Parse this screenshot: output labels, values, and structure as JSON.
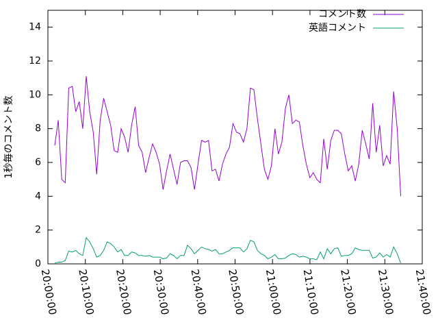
{
  "chart_data": {
    "type": "line",
    "y_label": "1秒毎のコメント数",
    "x": [
      "20:01:50",
      "20:02:46",
      "20:03:42",
      "20:04:38",
      "20:05:34",
      "20:06:30",
      "20:07:26",
      "20:08:22",
      "20:09:18",
      "20:10:14",
      "20:11:10",
      "20:12:06",
      "20:13:02",
      "20:13:58",
      "20:14:54",
      "20:15:50",
      "20:16:46",
      "20:17:42",
      "20:18:38",
      "20:19:34",
      "20:20:30",
      "20:21:26",
      "20:22:22",
      "20:23:18",
      "20:24:14",
      "20:25:10",
      "20:26:06",
      "20:27:02",
      "20:27:58",
      "20:28:54",
      "20:29:50",
      "20:30:46",
      "20:31:42",
      "20:32:38",
      "20:33:34",
      "20:34:30",
      "20:35:26",
      "20:36:22",
      "20:37:18",
      "20:38:14",
      "20:39:10",
      "20:40:06",
      "20:41:02",
      "20:41:58",
      "20:42:54",
      "20:43:50",
      "20:44:46",
      "20:45:42",
      "20:46:38",
      "20:47:34",
      "20:48:30",
      "20:49:26",
      "20:50:22",
      "20:51:18",
      "20:52:14",
      "20:53:10",
      "20:54:06",
      "20:55:02",
      "20:55:58",
      "20:56:54",
      "20:57:50",
      "20:58:46",
      "20:59:42",
      "21:00:38",
      "21:01:34",
      "21:02:30",
      "21:03:26",
      "21:04:22",
      "21:05:18",
      "21:06:14",
      "21:07:10",
      "21:08:06",
      "21:09:02",
      "21:09:58",
      "21:10:54",
      "21:11:50",
      "21:12:46",
      "21:13:42",
      "21:14:38",
      "21:15:34",
      "21:16:30",
      "21:17:26",
      "21:18:22",
      "21:19:18",
      "21:20:14",
      "21:21:10",
      "21:22:06",
      "21:23:02",
      "21:23:58",
      "21:24:54",
      "21:25:50",
      "21:26:46",
      "21:27:42",
      "21:28:38",
      "21:29:34",
      "21:30:30",
      "21:31:26",
      "21:32:22",
      "21:33:18",
      "21:34:14"
    ],
    "series": [
      {
        "name": "コメント数",
        "color": "#9400d3",
        "values": [
          7.0,
          8.5,
          5.0,
          4.8,
          10.4,
          10.5,
          9.0,
          9.6,
          8.0,
          11.1,
          9.0,
          7.8,
          5.3,
          8.5,
          9.8,
          9.0,
          8.2,
          6.7,
          6.6,
          8.0,
          7.5,
          6.6,
          8.2,
          9.3,
          7.0,
          6.6,
          5.4,
          6.3,
          7.1,
          6.6,
          5.9,
          4.4,
          5.5,
          6.5,
          5.6,
          4.7,
          6.0,
          6.1,
          6.1,
          5.7,
          4.4,
          5.9,
          7.3,
          7.2,
          7.3,
          5.5,
          5.6,
          4.9,
          5.9,
          6.5,
          6.9,
          8.3,
          7.8,
          7.7,
          7.2,
          8.0,
          10.4,
          10.3,
          8.6,
          7.1,
          5.6,
          5.0,
          5.8,
          8.0,
          6.5,
          7.2,
          9.2,
          10.0,
          8.3,
          8.5,
          8.4,
          7.0,
          5.9,
          5.1,
          5.4,
          5.0,
          4.8,
          7.4,
          5.6,
          7.3,
          7.9,
          7.9,
          7.7,
          6.5,
          5.5,
          5.8,
          4.9,
          5.9,
          7.9,
          7.1,
          6.2,
          9.5,
          6.6,
          8.2,
          5.8,
          6.4,
          5.9,
          10.2,
          8.0,
          4.0
        ]
      },
      {
        "name": "英語コメント",
        "color": "#009e73",
        "values": [
          0.05,
          0.1,
          0.1,
          0.2,
          0.75,
          0.7,
          0.8,
          0.6,
          0.5,
          1.55,
          1.3,
          0.9,
          0.4,
          0.5,
          0.8,
          1.3,
          1.2,
          1.0,
          0.7,
          0.85,
          0.5,
          0.5,
          0.7,
          0.65,
          0.5,
          0.5,
          0.45,
          0.5,
          0.4,
          0.4,
          0.4,
          0.3,
          0.35,
          0.6,
          0.5,
          0.3,
          0.5,
          0.5,
          1.1,
          0.9,
          0.6,
          0.8,
          1.0,
          0.9,
          0.85,
          0.75,
          0.85,
          0.6,
          0.6,
          0.7,
          0.8,
          0.95,
          0.95,
          0.95,
          0.7,
          0.9,
          1.4,
          1.3,
          0.8,
          0.6,
          0.5,
          0.3,
          0.4,
          0.55,
          0.3,
          0.3,
          0.35,
          0.5,
          0.6,
          0.55,
          0.4,
          0.45,
          0.4,
          0.3,
          0.3,
          0.25,
          0.7,
          0.3,
          0.9,
          0.6,
          0.9,
          0.95,
          0.45,
          0.5,
          0.5,
          0.6,
          0.95,
          0.85,
          0.8,
          0.8,
          0.8,
          0.35,
          0.4,
          0.65,
          0.4,
          0.55,
          0.4,
          1.0,
          0.6,
          0.05
        ]
      }
    ],
    "xlim": [
      "20:00:00",
      "21:40:00"
    ],
    "xticks": [
      "20:00:00",
      "20:10:00",
      "20:20:00",
      "20:30:00",
      "20:40:00",
      "20:50:00",
      "21:00:00",
      "21:10:00",
      "21:20:00",
      "21:30:00",
      "21:40:00"
    ],
    "ylim": [
      0,
      15
    ],
    "yticks": [
      0,
      2,
      4,
      6,
      8,
      10,
      12,
      14
    ],
    "legend": "top right",
    "grid": false
  }
}
